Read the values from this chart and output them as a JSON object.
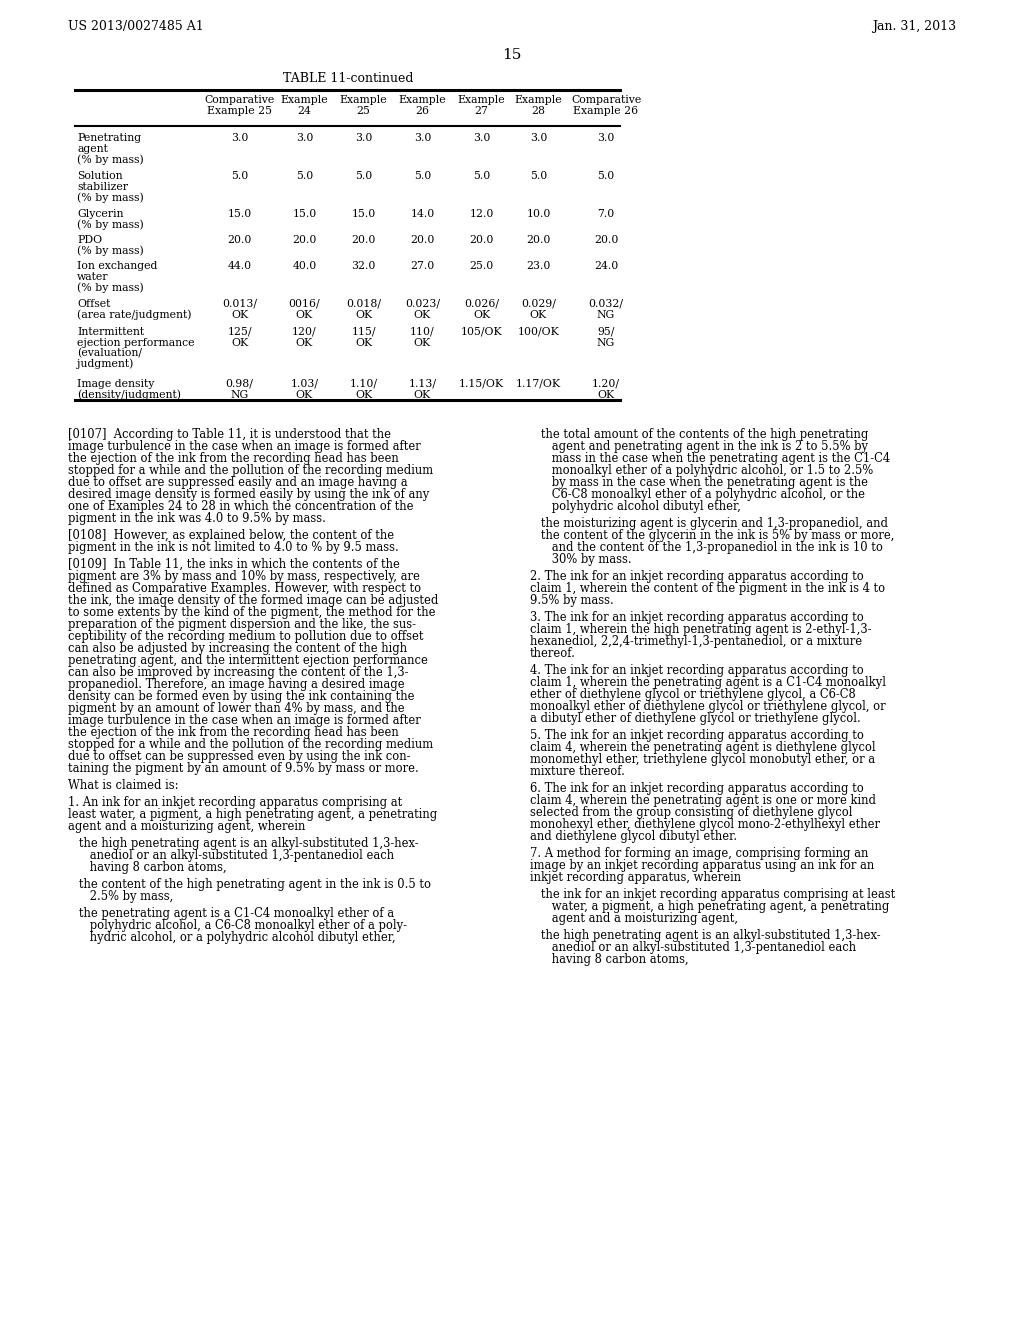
{
  "page_number": "15",
  "header_left": "US 2013/0027485 A1",
  "header_right": "Jan. 31, 2013",
  "table_title": "TABLE 11-continued",
  "bg_color": "#ffffff",
  "col_headers": [
    "",
    "Comparative\nExample 25",
    "Example\n24",
    "Example\n25",
    "Example\n26",
    "Example\n27",
    "Example\n28",
    "Comparative\nExample 26"
  ],
  "rows": [
    [
      "Penetrating\nagent\n(% by mass)",
      "3.0",
      "3.0",
      "3.0",
      "3.0",
      "3.0",
      "3.0",
      "3.0"
    ],
    [
      "Solution\nstabilizer\n(% by mass)",
      "5.0",
      "5.0",
      "5.0",
      "5.0",
      "5.0",
      "5.0",
      "5.0"
    ],
    [
      "Glycerin\n(% by mass)",
      "15.0",
      "15.0",
      "15.0",
      "14.0",
      "12.0",
      "10.0",
      "7.0"
    ],
    [
      "PDO\n(% by mass)",
      "20.0",
      "20.0",
      "20.0",
      "20.0",
      "20.0",
      "20.0",
      "20.0"
    ],
    [
      "Ion exchanged\nwater\n(% by mass)",
      "44.0",
      "40.0",
      "32.0",
      "27.0",
      "25.0",
      "23.0",
      "24.0"
    ],
    [
      "Offset\n(area rate/judgment)",
      "0.013/\nOK",
      "0016/\nOK",
      "0.018/\nOK",
      "0.023/\nOK",
      "0.026/\nOK",
      "0.029/\nOK",
      "0.032/\nNG"
    ],
    [
      "Intermittent\nejection performance\n(evaluation/\njudgment)",
      "125/\nOK",
      "120/\nOK",
      "115/\nOK",
      "110/\nOK",
      "105/OK",
      "100/OK",
      "95/\nNG"
    ],
    [
      "Image density\n(density/judgment)",
      "0.98/\nNG",
      "1.03/\nOK",
      "1.10/\nOK",
      "1.13/\nOK",
      "1.15/OK",
      "1.17/OK",
      "1.20/\nOK"
    ]
  ],
  "left_col_paragraphs": [
    "[0107]  According to Table 11, it is understood that the\nimage turbulence in the case when an image is formed after\nthe ejection of the ink from the recording head has been\nstopped for a while and the pollution of the recording medium\ndue to offset are suppressed easily and an image having a\ndesired image density is formed easily by using the ink of any\none of Examples 24 to 28 in which the concentration of the\npigment in the ink was 4.0 to 9.5% by mass.",
    "[0108]  However, as explained below, the content of the\npigment in the ink is not limited to 4.0 to % by 9.5 mass.",
    "[0109]  In Table 11, the inks in which the contents of the\npigment are 3% by mass and 10% by mass, respectively, are\ndefined as Comparative Examples. However, with respect to\nthe ink, the image density of the formed image can be adjusted\nto some extents by the kind of the pigment, the method for the\npreparation of the pigment dispersion and the like, the sus-\nceptibility of the recording medium to pollution due to offset\ncan also be adjusted by increasing the content of the high\npenetrating agent, and the intermittent ejection performance\ncan also be improved by increasing the content of the 1,3-\npropanediol. Therefore, an image having a desired image\ndensity can be formed even by using the ink containing the\npigment by an amount of lower than 4% by mass, and the\nimage turbulence in the case when an image is formed after\nthe ejection of the ink from the recording head has been\nstopped for a while and the pollution of the recording medium\ndue to offset can be suppressed even by using the ink con-\ntaining the pigment by an amount of 9.5% by mass or more.",
    "What is claimed is:",
    "1. An ink for an inkjet recording apparatus comprising at\nleast water, a pigment, a high penetrating agent, a penetrating\nagent and a moisturizing agent, wherein",
    "   the high penetrating agent is an alkyl-substituted 1,3-hex-\n      anediol or an alkyl-substituted 1,3-pentanediol each\n      having 8 carbon atoms,",
    "   the content of the high penetrating agent in the ink is 0.5 to\n      2.5% by mass,",
    "   the penetrating agent is a C1-C4 monoalkyl ether of a\n      polyhydric alcohol, a C6-C8 monoalkyl ether of a poly-\n      hydric alcohol, or a polyhydric alcohol dibutyl ether,"
  ],
  "right_col_paragraphs": [
    "   the total amount of the contents of the high penetrating\n      agent and penetrating agent in the ink is 2 to 5.5% by\n      mass in the case when the penetrating agent is the C1-C4\n      monoalkyl ether of a polyhydric alcohol, or 1.5 to 2.5%\n      by mass in the case when the penetrating agent is the\n      C6-C8 monoalkyl ether of a polyhydric alcohol, or the\n      polyhydric alcohol dibutyl ether,",
    "   the moisturizing agent is glycerin and 1,3-propanediol, and\n   the content of the glycerin in the ink is 5% by mass or more,\n      and the content of the 1,3-propanediol in the ink is 10 to\n      30% by mass.",
    "2. The ink for an inkjet recording apparatus according to\nclaim 1, wherein the content of the pigment in the ink is 4 to\n9.5% by mass.",
    "3. The ink for an inkjet recording apparatus according to\nclaim 1, wherein the high penetrating agent is 2-ethyl-1,3-\nhexanediol, 2,2,4-trimethyl-1,3-pentanediol, or a mixture\nthereof.",
    "4. The ink for an inkjet recording apparatus according to\nclaim 1, wherein the penetrating agent is a C1-C4 monoalkyl\nether of diethylene glycol or triethylene glycol, a C6-C8\nmonoalkyl ether of diethylene glycol or triethylene glycol, or\na dibutyl ether of diethylene glycol or triethylene glycol.",
    "5. The ink for an inkjet recording apparatus according to\nclaim 4, wherein the penetrating agent is diethylene glycol\nmonomethyl ether, triethylene glycol monobutyl ether, or a\nmixture thereof.",
    "6. The ink for an inkjet recording apparatus according to\nclaim 4, wherein the penetrating agent is one or more kind\nselected from the group consisting of diethylene glycol\nmonohexyl ether, diethylene glycol mono-2-ethylhexyl ether\nand diethylene glycol dibutyl ether.",
    "7. A method for forming an image, comprising forming an\nimage by an inkjet recording apparatus using an ink for an\ninkjet recording apparatus, wherein",
    "   the ink for an inkjet recording apparatus comprising at least\n      water, a pigment, a high penetrating agent, a penetrating\n      agent and a moisturizing agent,",
    "   the high penetrating agent is an alkyl-substituted 1,3-hex-\n      anediol or an alkyl-substituted 1,3-pentanediol each\n      having 8 carbon atoms,"
  ]
}
